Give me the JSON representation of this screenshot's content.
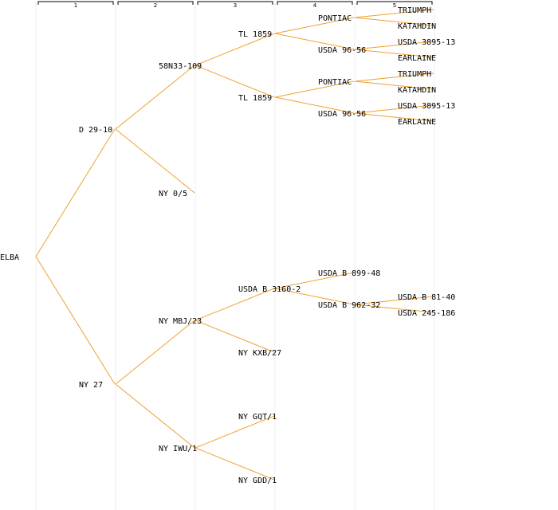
{
  "colors": {
    "edge": "#f0a030",
    "column_guide": "#efefef",
    "text": "#000000"
  },
  "generations": [
    "1",
    "2",
    "3",
    "4",
    "5"
  ],
  "pedigree": {
    "root": "ELBA",
    "nodes": [
      {
        "id": "n0",
        "label": "ELBA",
        "gen": 0
      },
      {
        "id": "n1",
        "label": "D 29-10",
        "gen": 1,
        "parent": "n0"
      },
      {
        "id": "n2",
        "label": "NY 27",
        "gen": 1,
        "parent": "n0"
      },
      {
        "id": "n3",
        "label": "58N33-109",
        "gen": 2,
        "parent": "n1"
      },
      {
        "id": "n4",
        "label": "NY 0/5",
        "gen": 2,
        "parent": "n1"
      },
      {
        "id": "n5",
        "label": "NY MBJ/23",
        "gen": 2,
        "parent": "n2"
      },
      {
        "id": "n6",
        "label": "NY IWU/1",
        "gen": 2,
        "parent": "n2"
      },
      {
        "id": "n7",
        "label": "TL 1859",
        "gen": 3,
        "parent": "n3"
      },
      {
        "id": "n8",
        "label": "TL 1859",
        "gen": 3,
        "parent": "n3"
      },
      {
        "id": "n9",
        "label": "USDA B 3160-2",
        "gen": 3,
        "parent": "n5"
      },
      {
        "id": "n10",
        "label": "NY KXB/27",
        "gen": 3,
        "parent": "n5"
      },
      {
        "id": "n11",
        "label": "NY GQT/1",
        "gen": 3,
        "parent": "n6"
      },
      {
        "id": "n12",
        "label": "NY GDD/1",
        "gen": 3,
        "parent": "n6"
      },
      {
        "id": "n13",
        "label": "PONTIAC",
        "gen": 4,
        "parent": "n7"
      },
      {
        "id": "n14",
        "label": "USDA 96-56",
        "gen": 4,
        "parent": "n7"
      },
      {
        "id": "n15",
        "label": "PONTIAC",
        "gen": 4,
        "parent": "n8"
      },
      {
        "id": "n16",
        "label": "USDA 96-56",
        "gen": 4,
        "parent": "n8"
      },
      {
        "id": "n17",
        "label": "USDA B 899-48",
        "gen": 4,
        "parent": "n9"
      },
      {
        "id": "n18",
        "label": "USDA B 962-32",
        "gen": 4,
        "parent": "n9"
      },
      {
        "id": "n19",
        "label": "TRIUMPH",
        "gen": 5,
        "parent": "n13"
      },
      {
        "id": "n20",
        "label": "KATAHDIN",
        "gen": 5,
        "parent": "n13"
      },
      {
        "id": "n21",
        "label": "USDA 3895-13",
        "gen": 5,
        "parent": "n14"
      },
      {
        "id": "n22",
        "label": "EARLAINE",
        "gen": 5,
        "parent": "n14"
      },
      {
        "id": "n23",
        "label": "TRIUMPH",
        "gen": 5,
        "parent": "n15"
      },
      {
        "id": "n24",
        "label": "KATAHDIN",
        "gen": 5,
        "parent": "n15"
      },
      {
        "id": "n25",
        "label": "USDA 3895-13",
        "gen": 5,
        "parent": "n16"
      },
      {
        "id": "n26",
        "label": "EARLAINE",
        "gen": 5,
        "parent": "n16"
      },
      {
        "id": "n27",
        "label": "USDA B 81-40",
        "gen": 5,
        "parent": "n18"
      },
      {
        "id": "n28",
        "label": "USDA 245-186",
        "gen": 5,
        "parent": "n18"
      }
    ]
  }
}
